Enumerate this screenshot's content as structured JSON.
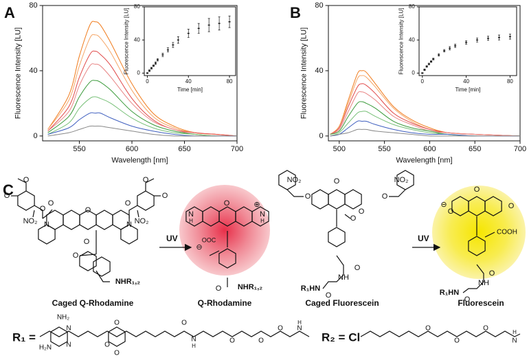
{
  "chart_data": [
    {
      "type": "line",
      "title": "A",
      "xlabel": "Wavelength [nm]",
      "ylabel": "Fluorescence Intensity [LU]",
      "x": [
        520,
        540,
        550,
        560,
        565,
        570,
        580,
        600,
        620,
        640,
        660,
        680,
        700
      ],
      "xlim": [
        515,
        700
      ],
      "xticks": [
        550,
        600,
        650,
        700
      ],
      "ylim": [
        -3,
        80
      ],
      "yticks": [
        0,
        40,
        80
      ],
      "series": [
        {
          "color": "#f07a1a",
          "values": [
            4,
            25,
            49,
            68,
            70,
            68,
            57,
            32,
            14,
            6,
            2,
            1,
            0
          ]
        },
        {
          "color": "#f5a566",
          "values": [
            4,
            22,
            43,
            60,
            62,
            60,
            51,
            28,
            12,
            5,
            2,
            1,
            0
          ]
        },
        {
          "color": "#e04848",
          "values": [
            3,
            18,
            36,
            50,
            52,
            50,
            43,
            23,
            10,
            4,
            2,
            1,
            0
          ]
        },
        {
          "color": "#e88484",
          "values": [
            3,
            15,
            31,
            43,
            44,
            43,
            36,
            20,
            9,
            4,
            1,
            0,
            0
          ]
        },
        {
          "color": "#3a9a3a",
          "values": [
            2,
            12,
            24,
            33,
            34,
            33,
            28,
            15,
            7,
            3,
            1,
            0,
            0
          ]
        },
        {
          "color": "#78c078",
          "values": [
            1,
            8,
            17,
            23,
            24,
            23,
            20,
            11,
            5,
            2,
            1,
            0,
            0
          ]
        },
        {
          "color": "#3f5fbf",
          "values": [
            1,
            5,
            10,
            14,
            14,
            14,
            11,
            6,
            3,
            1,
            0,
            0,
            0
          ]
        },
        {
          "color": "#888888",
          "values": [
            0,
            2,
            4,
            6,
            6,
            6,
            5,
            3,
            1,
            0,
            0,
            0,
            0
          ]
        }
      ]
    },
    {
      "type": "scatter",
      "xlabel": "Time [min]",
      "ylabel": "Fluorescence Intensity [LU]",
      "color": "#111111",
      "x": [
        0,
        2,
        4,
        6,
        8,
        10,
        15,
        20,
        25,
        30,
        40,
        50,
        60,
        70,
        80
      ],
      "values": [
        0,
        3,
        6,
        9,
        12,
        16,
        22,
        28,
        34,
        40,
        48,
        54,
        58,
        60,
        62
      ],
      "errors": [
        0.5,
        1,
        1,
        1,
        1.5,
        1.5,
        2,
        2.5,
        3,
        4,
        5,
        6,
        8,
        8,
        7
      ],
      "xlim": [
        -3,
        86
      ],
      "xticks": [
        0,
        40,
        80
      ],
      "ylim": [
        -3,
        80
      ],
      "yticks": [
        0,
        40,
        80
      ]
    },
    {
      "type": "line",
      "title": "B",
      "xlabel": "Wavelength [nm]",
      "ylabel": "Fluorescence Intensity [LU]",
      "x": [
        490,
        500,
        510,
        520,
        525,
        530,
        540,
        560,
        580,
        600,
        620,
        650,
        700
      ],
      "xlim": [
        488,
        700
      ],
      "xticks": [
        500,
        550,
        600,
        650,
        700
      ],
      "ylim": [
        -3,
        80
      ],
      "yticks": [
        0,
        40,
        80
      ],
      "series": [
        {
          "color": "#f07a1a",
          "values": [
            1,
            6,
            22,
            38,
            40,
            39,
            32,
            18,
            10,
            5,
            2,
            1,
            0
          ]
        },
        {
          "color": "#f5a566",
          "values": [
            1,
            6,
            20,
            35,
            37,
            36,
            30,
            17,
            9,
            4,
            2,
            1,
            0
          ]
        },
        {
          "color": "#e04848",
          "values": [
            1,
            5,
            18,
            30,
            32,
            31,
            26,
            14,
            8,
            4,
            2,
            1,
            0
          ]
        },
        {
          "color": "#e88484",
          "values": [
            1,
            4,
            15,
            26,
            27,
            26,
            22,
            12,
            7,
            3,
            2,
            1,
            0
          ]
        },
        {
          "color": "#3a9a3a",
          "values": [
            1,
            3,
            12,
            20,
            21,
            20,
            17,
            9,
            5,
            3,
            1,
            0,
            0
          ]
        },
        {
          "color": "#78c078",
          "values": [
            0,
            2,
            8,
            14,
            15,
            15,
            12,
            7,
            4,
            2,
            1,
            0,
            0
          ]
        },
        {
          "color": "#3f5fbf",
          "values": [
            0,
            1,
            5,
            9,
            9,
            9,
            7,
            4,
            2,
            1,
            1,
            0,
            0
          ]
        },
        {
          "color": "#888888",
          "values": [
            0,
            1,
            2,
            4,
            4,
            4,
            3,
            2,
            1,
            0,
            0,
            0,
            0
          ]
        }
      ]
    },
    {
      "type": "scatter",
      "xlabel": "Time [min]",
      "ylabel": "Fluorescence Intensity [LU]",
      "color": "#111111",
      "x": [
        0,
        2,
        4,
        6,
        8,
        10,
        15,
        20,
        25,
        30,
        40,
        50,
        60,
        70,
        80
      ],
      "values": [
        0,
        4,
        8,
        11,
        14,
        17,
        22,
        27,
        30,
        33,
        37,
        40,
        42,
        43,
        44
      ],
      "errors": [
        0.5,
        1,
        1,
        1,
        1,
        1,
        1.5,
        1.5,
        2,
        2,
        2,
        2.5,
        2.5,
        3,
        3
      ],
      "xlim": [
        -3,
        86
      ],
      "xticks": [
        0,
        40,
        80
      ],
      "ylim": [
        -3,
        80
      ],
      "yticks": [
        0,
        40,
        80
      ]
    }
  ],
  "panel_c": {
    "title": "C",
    "uv": [
      "UV",
      "UV"
    ],
    "names": [
      "Caged Q-Rhodamine",
      "Q-Rhodamine",
      "Caged Fluorescein",
      "Fluorescein"
    ],
    "caged_q_rhodamine": [
      "O",
      "O",
      "NO₂",
      "O",
      "O",
      "N",
      "O",
      "N",
      "O",
      "O",
      "O",
      "NO₂",
      "O",
      "O",
      "NHR₁,₂"
    ],
    "q_rhodamine": [
      "N",
      "H",
      "O",
      "N",
      "H",
      "⊕",
      "OOC",
      "⊖",
      "O",
      "NHR₁,₂"
    ],
    "caged_fluorescein": [
      "NO₂",
      "O",
      "O",
      "O",
      "NO₂",
      "O",
      "O",
      "O",
      "NH",
      "R₁HN",
      "O"
    ],
    "fluorescein": [
      "⊖",
      "O",
      "O",
      "O",
      "COOH",
      "O",
      "NH",
      "R₁HN",
      "O"
    ],
    "r1": {
      "label": "R₁ =",
      "atoms": [
        "NH₂",
        "N",
        "H₂N",
        "N",
        "O",
        "O",
        "O",
        "O",
        "N",
        "H",
        "O",
        "O",
        "O",
        "N",
        "H"
      ]
    },
    "r2": {
      "label": "R₂ = Cl",
      "atoms": [
        "O",
        "O",
        "O",
        "N",
        "H"
      ]
    }
  }
}
